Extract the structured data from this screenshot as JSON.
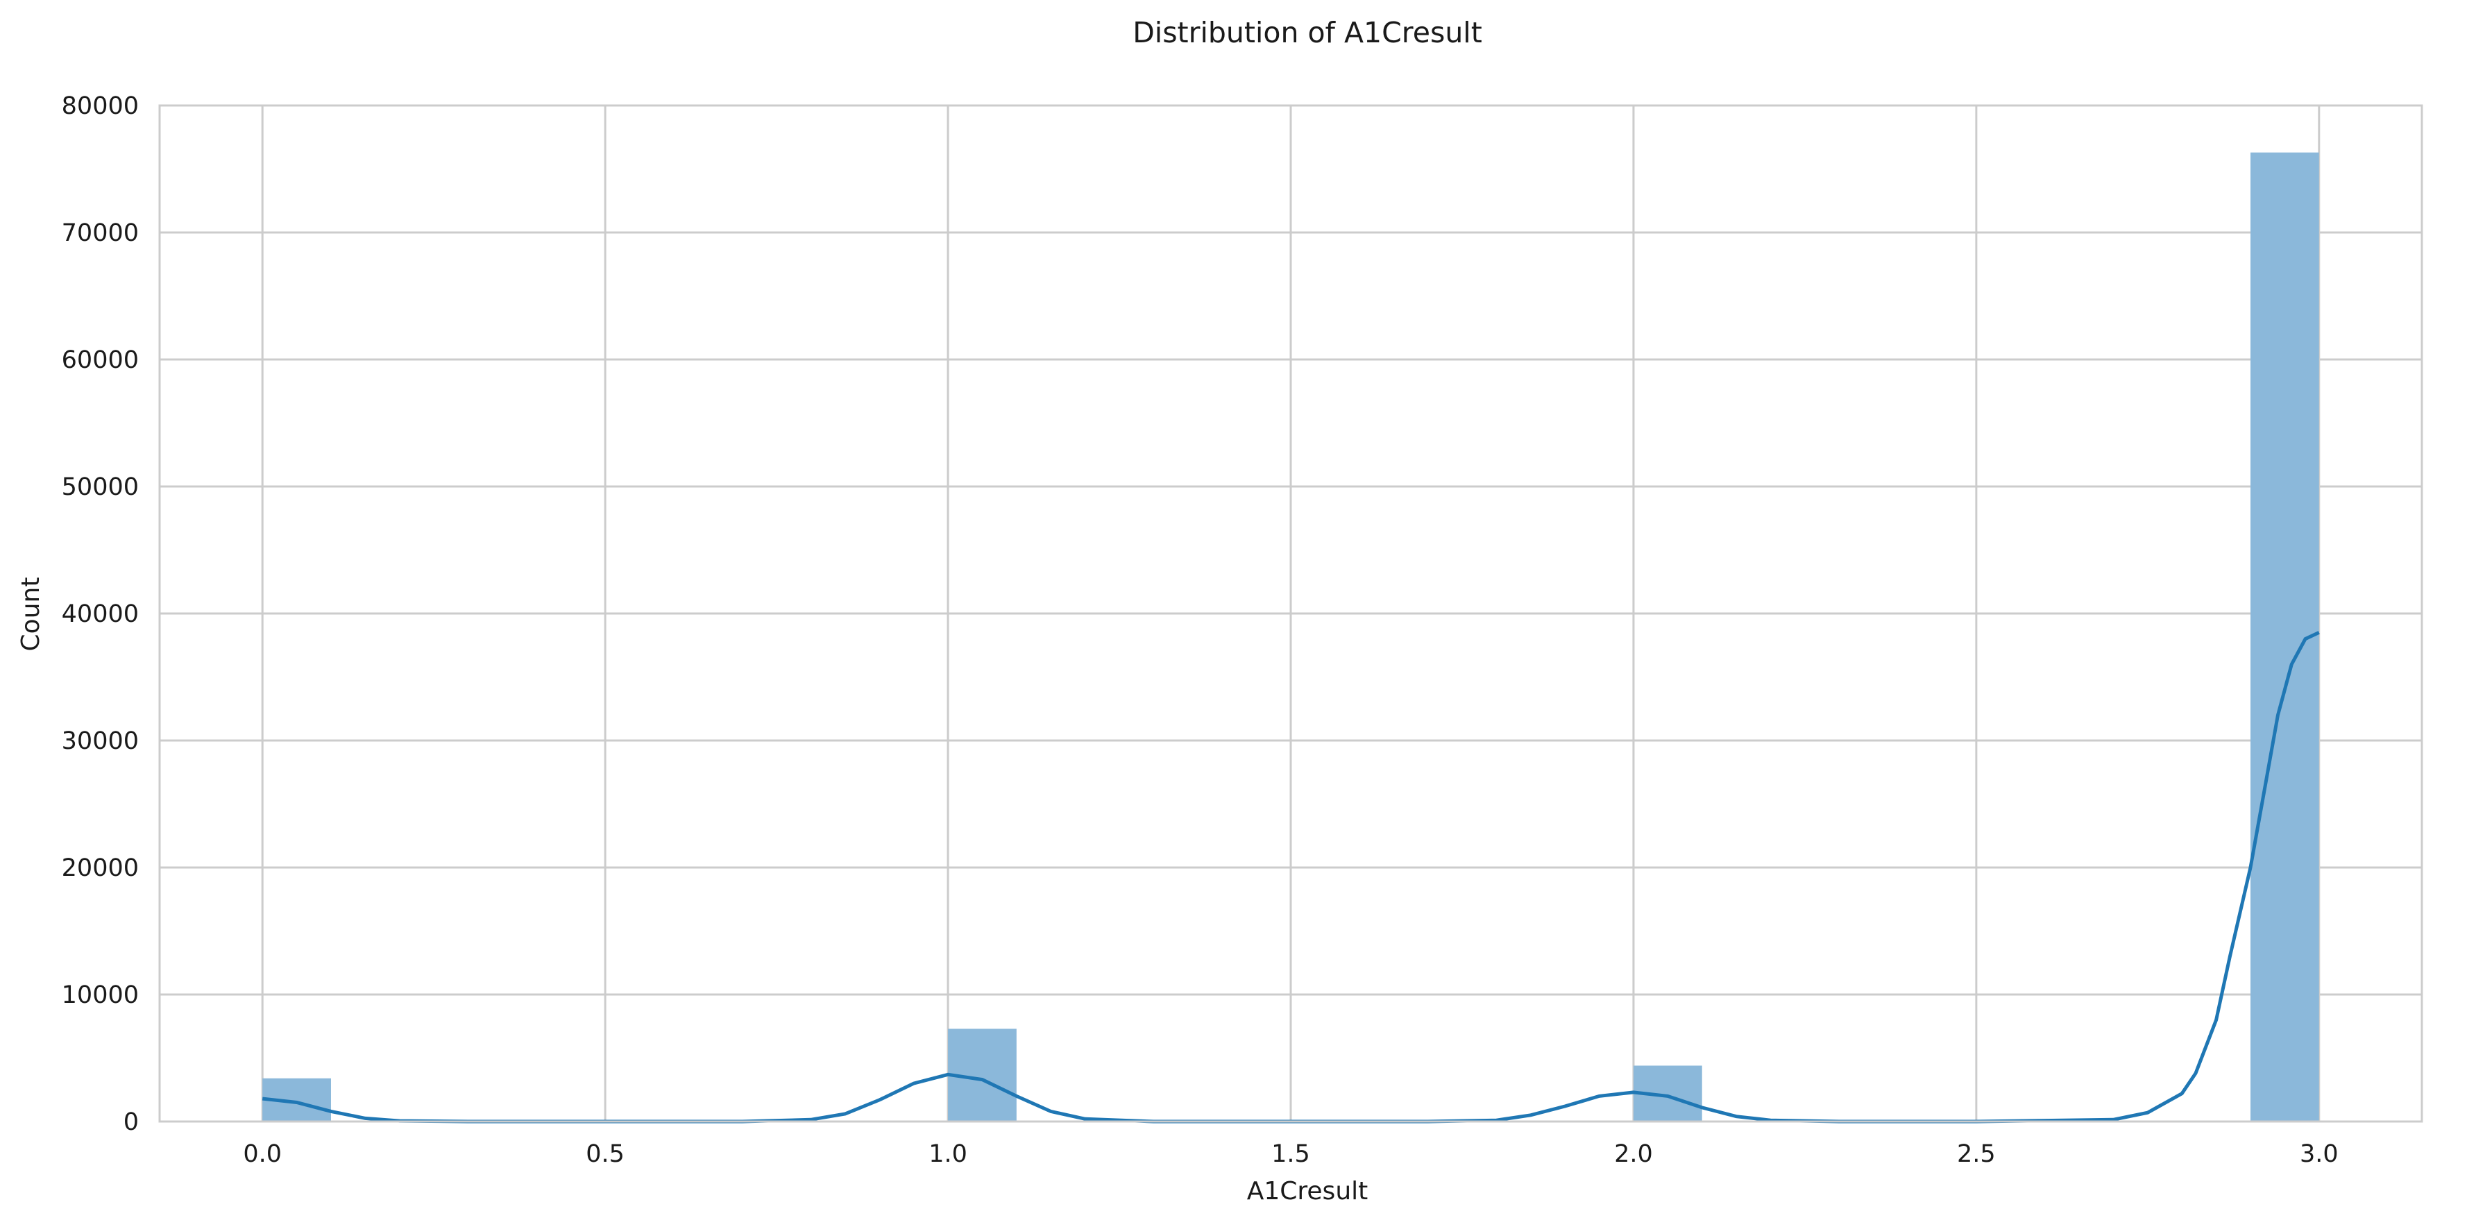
{
  "chart_data": {
    "type": "bar",
    "title": "Distribution of A1Cresult",
    "xlabel": "A1Cresult",
    "ylabel": "Count",
    "xlim": [
      -0.15,
      3.15
    ],
    "ylim": [
      0,
      80000
    ],
    "xticks": [
      0.0,
      0.5,
      1.0,
      1.5,
      2.0,
      2.5,
      3.0
    ],
    "xtick_labels": [
      "0.0",
      "0.5",
      "1.0",
      "1.5",
      "2.0",
      "2.5",
      "3.0"
    ],
    "yticks": [
      0,
      10000,
      20000,
      30000,
      40000,
      50000,
      60000,
      70000,
      80000
    ],
    "ytick_labels": [
      "0",
      "10000",
      "20000",
      "30000",
      "40000",
      "50000",
      "60000",
      "70000",
      "80000"
    ],
    "grid": true,
    "legend": "none",
    "bar_color": "#8bb8da",
    "kde_color": "#1f77b4",
    "bins": [
      {
        "x_start": 0.0,
        "x_end": 0.1,
        "count": 3400
      },
      {
        "x_start": 1.0,
        "x_end": 1.1,
        "count": 7300
      },
      {
        "x_start": 2.0,
        "x_end": 2.1,
        "count": 4400
      },
      {
        "x_start": 2.9,
        "x_end": 3.0,
        "count": 76300
      }
    ],
    "kde": {
      "x": [
        0.0,
        0.05,
        0.1,
        0.15,
        0.2,
        0.3,
        0.5,
        0.7,
        0.8,
        0.85,
        0.9,
        0.95,
        1.0,
        1.05,
        1.1,
        1.15,
        1.2,
        1.3,
        1.5,
        1.7,
        1.8,
        1.85,
        1.9,
        1.95,
        2.0,
        2.05,
        2.1,
        2.15,
        2.2,
        2.3,
        2.5,
        2.7,
        2.75,
        2.8,
        2.82,
        2.85,
        2.87,
        2.9,
        2.92,
        2.94,
        2.96,
        2.98,
        3.0
      ],
      "y": [
        1800,
        1500,
        800,
        250,
        50,
        0,
        0,
        0,
        150,
        600,
        1700,
        3000,
        3700,
        3300,
        2000,
        800,
        200,
        0,
        0,
        0,
        100,
        500,
        1200,
        2000,
        2300,
        2000,
        1100,
        400,
        100,
        0,
        0,
        150,
        700,
        2200,
        3800,
        8000,
        13000,
        20000,
        26000,
        32000,
        36000,
        38000,
        38500
      ]
    }
  }
}
